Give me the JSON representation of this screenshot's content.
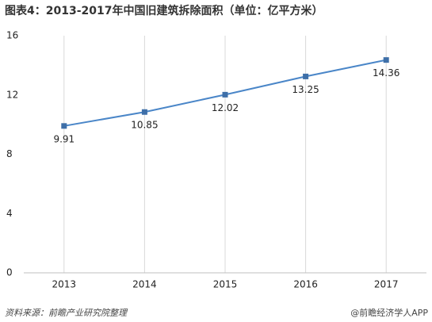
{
  "chart_data": {
    "type": "line",
    "title": "图表4：2013-2017年中国旧建筑拆除面积（单位：亿平方米）",
    "categories": [
      "2013",
      "2014",
      "2015",
      "2016",
      "2017"
    ],
    "series": [
      {
        "name": "旧建筑拆除面积",
        "color": "#4a86c8",
        "values": [
          9.91,
          10.85,
          12.02,
          13.25,
          14.36
        ]
      }
    ],
    "ylim": [
      0,
      16
    ],
    "yticks": [
      0,
      4,
      8,
      12,
      16
    ],
    "grid": "x",
    "source": "资料来源：前瞻产业研究院整理",
    "credit": "@前瞻经济学人APP"
  }
}
